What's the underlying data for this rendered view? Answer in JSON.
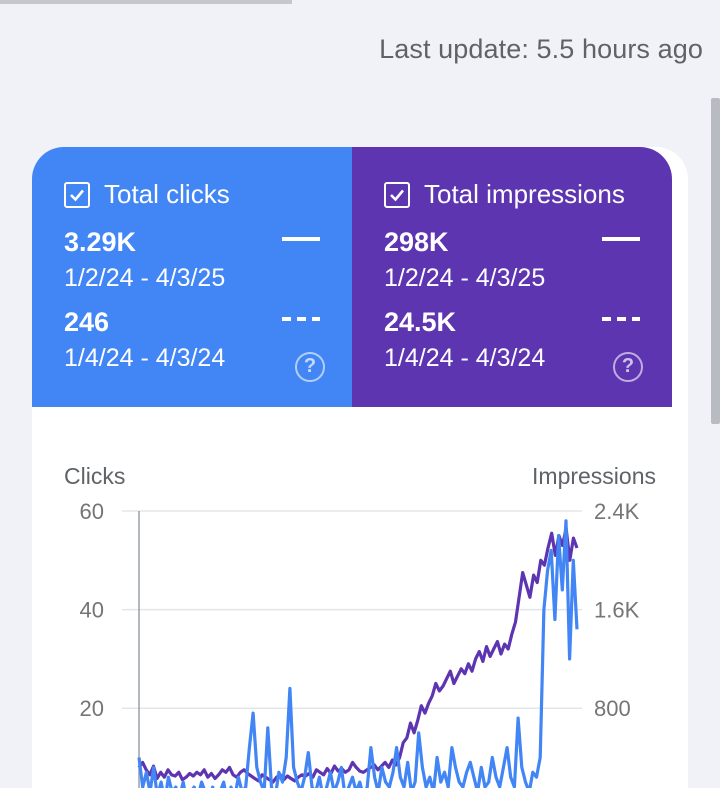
{
  "last_update": "Last update: 5.5 hours ago",
  "colors": {
    "clicks": "#4285f4",
    "impressions": "#5e35b1",
    "background": "#f0f2f7",
    "card": "#ffffff"
  },
  "metrics": {
    "clicks": {
      "title": "Total clicks",
      "checked": true,
      "current_value": "3.29K",
      "current_range": "1/2/24 - 4/3/25",
      "previous_value": "246",
      "previous_range": "1/4/24 - 4/3/24",
      "icon": "help-icon"
    },
    "impressions": {
      "title": "Total impressions",
      "checked": true,
      "current_value": "298K",
      "current_range": "1/2/24 - 4/3/25",
      "previous_value": "24.5K",
      "previous_range": "1/4/24 - 4/3/24",
      "icon": "help-icon"
    }
  },
  "chart_data": {
    "type": "line",
    "ylabel": "Clicks",
    "y2label": "Impressions",
    "ylim": [
      0,
      60
    ],
    "y2lim": [
      0,
      2400
    ],
    "yticks": [
      "60",
      "40",
      "20"
    ],
    "y2ticks": [
      "2.4K",
      "1.6K",
      "800"
    ],
    "grid": true,
    "series": [
      {
        "axis": "right",
        "color": "#5e35b1",
        "values": [
          320,
          360,
          300,
          260,
          330,
          230,
          280,
          240,
          300,
          260,
          250,
          280,
          220,
          240,
          270,
          250,
          280,
          260,
          300,
          240,
          270,
          230,
          260,
          300,
          280,
          320,
          260,
          240,
          280,
          300,
          270,
          250,
          230,
          210,
          260,
          240,
          220,
          200,
          240,
          260,
          220,
          250,
          230,
          210,
          240,
          260,
          250,
          270,
          240,
          300,
          280,
          260,
          310,
          270,
          330,
          290,
          310,
          280,
          300,
          360,
          320,
          290,
          280,
          300,
          320,
          340,
          300,
          330,
          360,
          320,
          380,
          340,
          400,
          520,
          560,
          680,
          600,
          700,
          820,
          760,
          840,
          900,
          1000,
          940,
          980,
          1040,
          1100,
          1000,
          1060,
          1120,
          1080,
          1160,
          1100,
          1200,
          1260,
          1180,
          1300,
          1220,
          1280,
          1340,
          1240,
          1320,
          1280,
          1400,
          1500,
          1700,
          1900,
          1800,
          1700,
          1880,
          1820,
          2000,
          1960,
          2100,
          2220,
          2040,
          2200,
          2120,
          2260,
          2000,
          2180,
          2100
        ]
      },
      {
        "axis": "left",
        "color": "#4285f4",
        "values": [
          10,
          4,
          7,
          3,
          8,
          2,
          5,
          1,
          6,
          3,
          4,
          2,
          5,
          1,
          3,
          4,
          2,
          5,
          3,
          1,
          4,
          2,
          3,
          5,
          1,
          4,
          2,
          6,
          3,
          4,
          12,
          19,
          8,
          5,
          3,
          16,
          4,
          2,
          7,
          5,
          10,
          24,
          8,
          5,
          3,
          6,
          11,
          4,
          3,
          6,
          2,
          4,
          7,
          3,
          5,
          8,
          2,
          4,
          6,
          3,
          5,
          2,
          4,
          12,
          6,
          3,
          8,
          5,
          4,
          7,
          12,
          6,
          4,
          9,
          3,
          5,
          15,
          8,
          4,
          6,
          3,
          10,
          5,
          7,
          4,
          12,
          8,
          5,
          4,
          7,
          9,
          6,
          3,
          8,
          4,
          5,
          10,
          6,
          4,
          8,
          12,
          6,
          4,
          18,
          8,
          5,
          3,
          7,
          6,
          10,
          40,
          48,
          52,
          38,
          55,
          44,
          58,
          30,
          50,
          36
        ]
      }
    ]
  }
}
